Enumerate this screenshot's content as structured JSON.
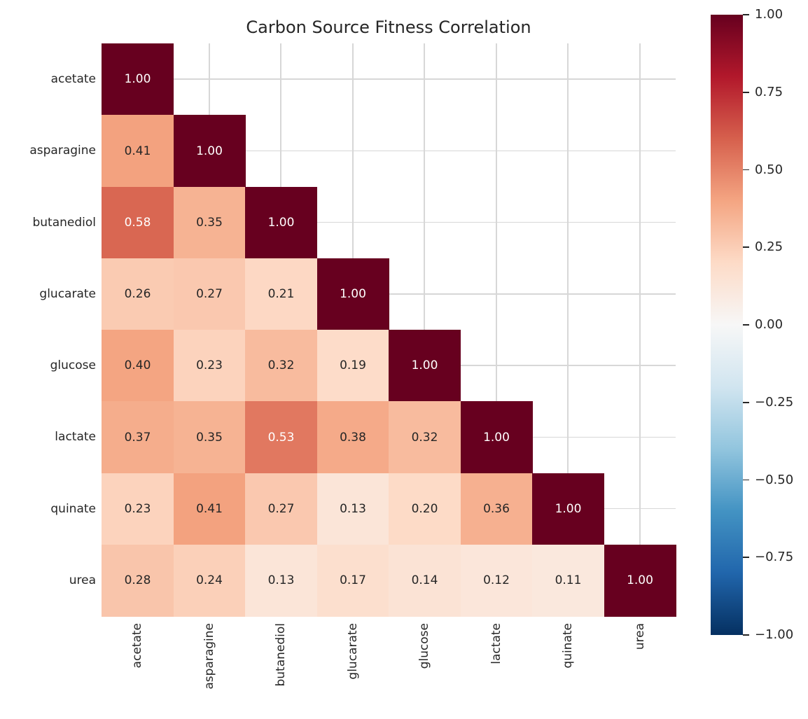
{
  "chart_data": {
    "type": "heatmap",
    "title": "Carbon Source Fitness Correlation",
    "categories": [
      "acetate",
      "asparagine",
      "butanediol",
      "glucarate",
      "glucose",
      "lactate",
      "quinate",
      "urea"
    ],
    "matrix_lower_triangle": [
      [
        1.0
      ],
      [
        0.41,
        1.0
      ],
      [
        0.58,
        0.35,
        1.0
      ],
      [
        0.26,
        0.27,
        0.21,
        1.0
      ],
      [
        0.4,
        0.23,
        0.32,
        0.19,
        1.0
      ],
      [
        0.37,
        0.35,
        0.53,
        0.38,
        0.32,
        1.0
      ],
      [
        0.23,
        0.41,
        0.27,
        0.13,
        0.2,
        0.36,
        1.0
      ],
      [
        0.28,
        0.24,
        0.13,
        0.17,
        0.14,
        0.12,
        0.11,
        1.0
      ]
    ],
    "mask": "upper-triangle-hidden",
    "annotation_format": "2-decimals",
    "colormap": "RdBu_r",
    "vmin": -1.0,
    "vmax": 1.0,
    "grid": true,
    "legend_position": "right-colorbar",
    "colorbar_ticks": [
      "1.00",
      "0.75",
      "0.50",
      "0.25",
      "0.00",
      "−0.25",
      "−0.50",
      "−0.75",
      "−1.00"
    ]
  },
  "style": {
    "colormap_anchors_top_to_bottom": [
      "#67001f",
      "#b2182b",
      "#d6604d",
      "#f4a582",
      "#fddbc7",
      "#f7f7f7",
      "#d1e5f0",
      "#92c5de",
      "#4393c3",
      "#2166ac",
      "#053061"
    ],
    "grid_color": "#d7d7d7",
    "text_color": "#262626",
    "annotation_dark_text": "#262626",
    "annotation_light_text": "#ffffff",
    "background": "#ffffff"
  }
}
